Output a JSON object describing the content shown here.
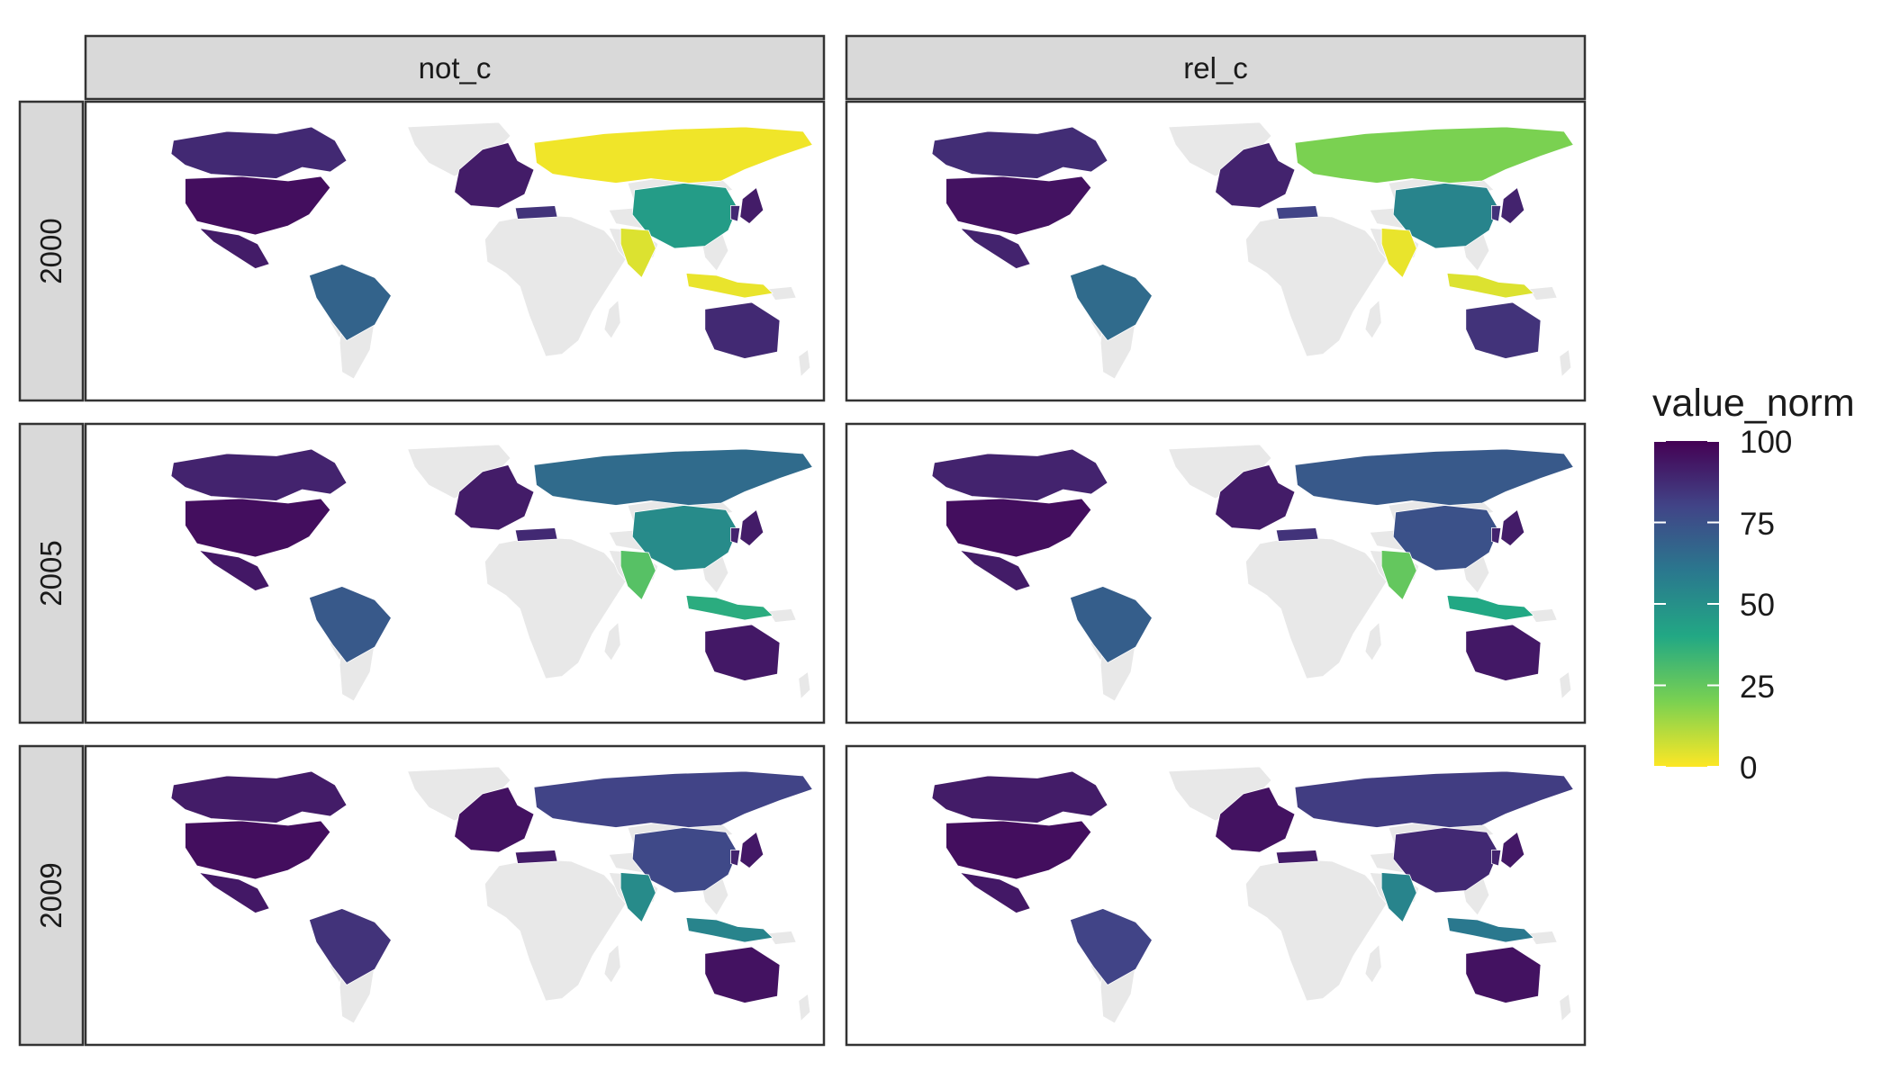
{
  "facets": {
    "columns": [
      "not_c",
      "rel_c"
    ],
    "rows": [
      "2000",
      "2005",
      "2009"
    ]
  },
  "legend": {
    "title": "value_norm",
    "ticks": [
      "100",
      "75",
      "50",
      "25",
      "0"
    ],
    "range": [
      0,
      100
    ],
    "palette": "viridis"
  },
  "colors": {
    "no_data": "#e8e8e8",
    "strip_fill": "#d9d9d9",
    "panel_border": "#333333",
    "background": "#ffffff"
  },
  "countries": [
    "USA",
    "Canada",
    "Mexico",
    "Brazil",
    "Europe",
    "Turkey",
    "Russia",
    "China",
    "India",
    "Indonesia",
    "Japan",
    "Korea",
    "Australia"
  ],
  "map_data": {
    "not_c": {
      "2000": {
        "USA": 96,
        "Canada": 88,
        "Mexico": 92,
        "Brazil": 68,
        "Europe": 92,
        "Turkey": 85,
        "Russia": 2,
        "China": 45,
        "India": 5,
        "Indonesia": 3,
        "Japan": 92,
        "Korea": 88,
        "Australia": 88
      },
      "2005": {
        "USA": 96,
        "Canada": 90,
        "Mexico": 93,
        "Brazil": 72,
        "Europe": 92,
        "Turkey": 88,
        "Russia": 65,
        "China": 52,
        "India": 28,
        "Indonesia": 38,
        "Japan": 92,
        "Korea": 90,
        "Australia": 93
      },
      "2009": {
        "USA": 96,
        "Canada": 92,
        "Mexico": 93,
        "Brazil": 85,
        "Europe": 95,
        "Turkey": 92,
        "Russia": 80,
        "China": 78,
        "India": 52,
        "Indonesia": 55,
        "Japan": 93,
        "Korea": 90,
        "Australia": 95
      }
    },
    "rel_c": {
      "2000": {
        "USA": 95,
        "Canada": 87,
        "Mexico": 90,
        "Brazil": 65,
        "Europe": 90,
        "Turkey": 80,
        "Russia": 20,
        "China": 55,
        "India": 3,
        "Indonesia": 5,
        "Japan": 90,
        "Korea": 85,
        "Australia": 85
      },
      "2005": {
        "USA": 96,
        "Canada": 90,
        "Mexico": 92,
        "Brazil": 70,
        "Europe": 92,
        "Turkey": 85,
        "Russia": 72,
        "China": 75,
        "India": 25,
        "Indonesia": 40,
        "Japan": 92,
        "Korea": 90,
        "Australia": 93
      },
      "2009": {
        "USA": 96,
        "Canada": 92,
        "Mexico": 93,
        "Brazil": 80,
        "Europe": 95,
        "Turkey": 92,
        "Russia": 82,
        "China": 88,
        "India": 55,
        "Indonesia": 60,
        "Japan": 93,
        "Korea": 90,
        "Australia": 95
      }
    }
  }
}
